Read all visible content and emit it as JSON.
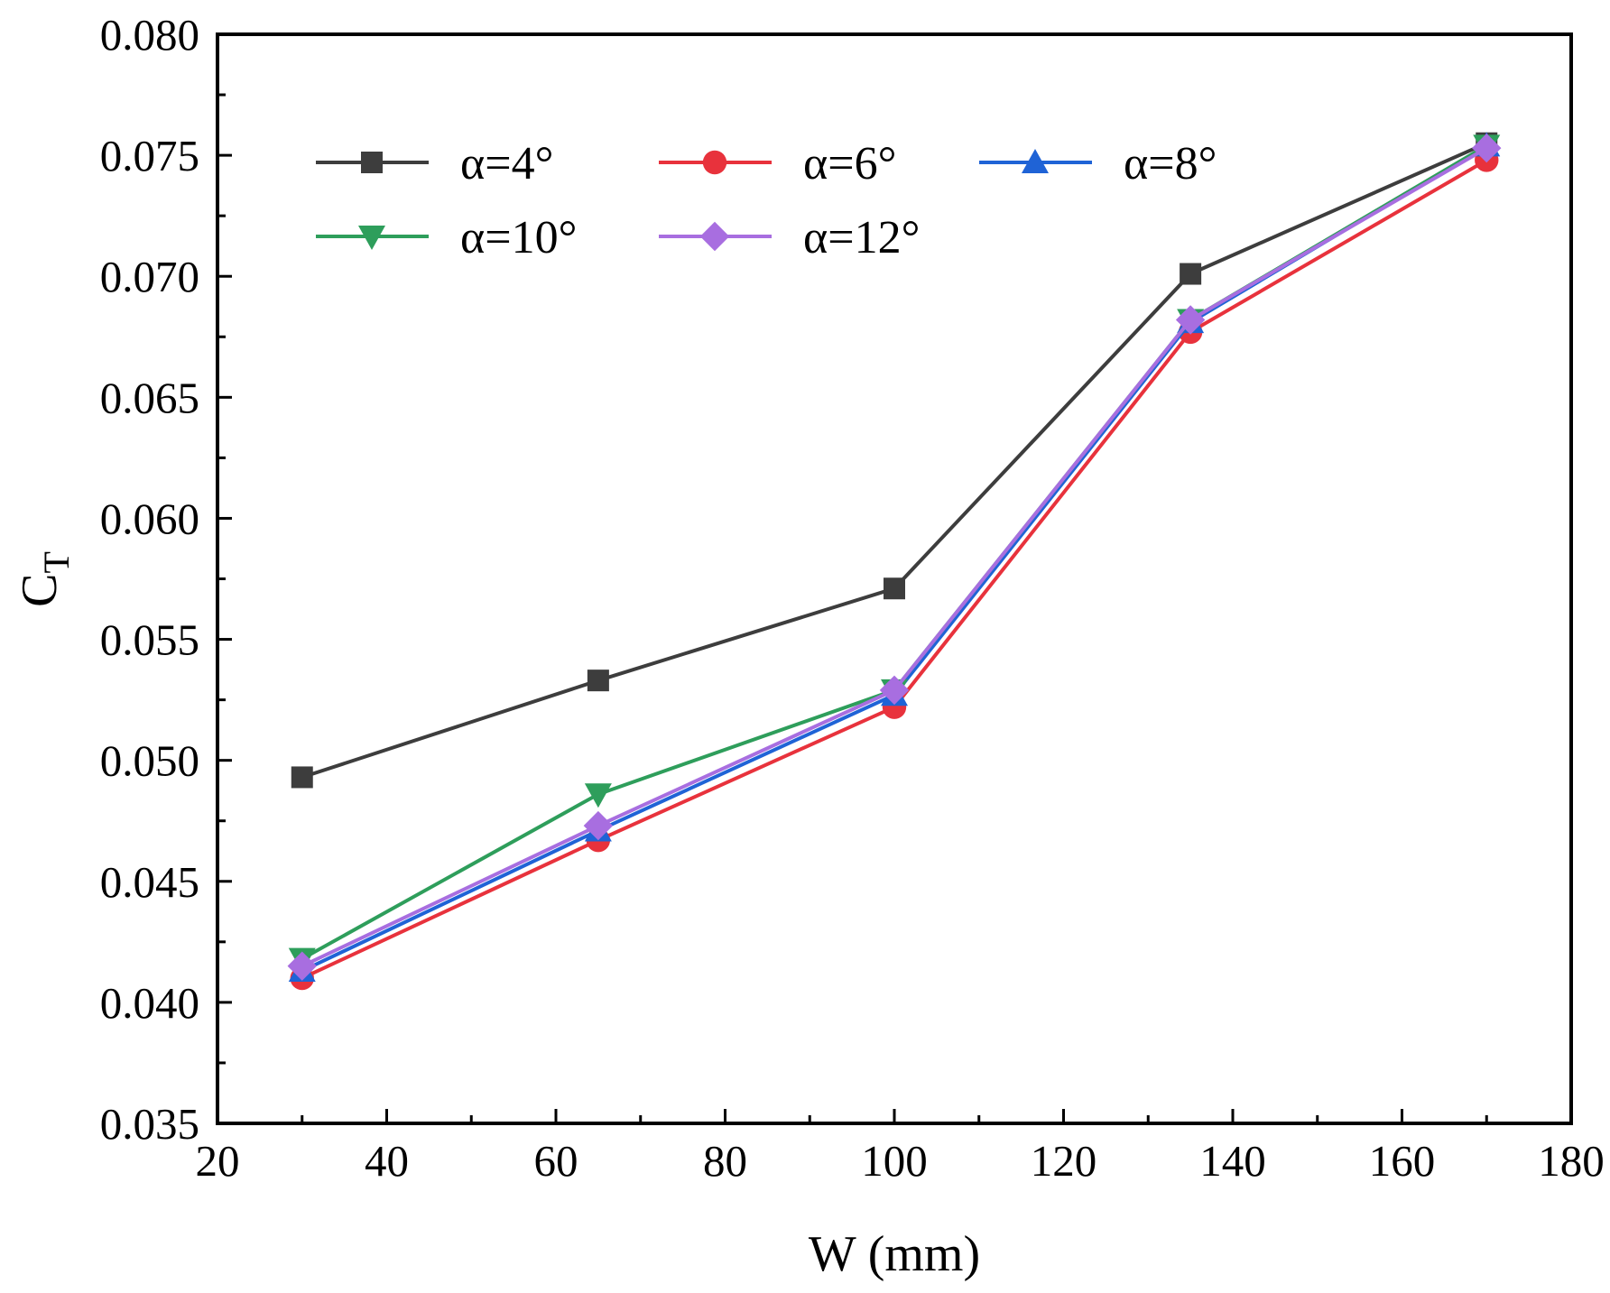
{
  "chart_data": {
    "type": "line",
    "title": "",
    "xlabel": "W (mm)",
    "ylabel_main": "C",
    "ylabel_sub": "T",
    "xlim": [
      20,
      180
    ],
    "ylim": [
      0.035,
      0.08
    ],
    "x_ticks": [
      20,
      40,
      60,
      80,
      100,
      120,
      140,
      160,
      180
    ],
    "x_tick_labels": [
      "20",
      "40",
      "60",
      "80",
      "100",
      "120",
      "140",
      "160",
      "180"
    ],
    "y_ticks": [
      0.035,
      0.04,
      0.045,
      0.05,
      0.055,
      0.06,
      0.065,
      0.07,
      0.075,
      0.08
    ],
    "y_tick_labels": [
      "0.035",
      "0.040",
      "0.045",
      "0.050",
      "0.055",
      "0.060",
      "0.065",
      "0.070",
      "0.075",
      "0.080"
    ],
    "grid": false,
    "legend_position": "top-left",
    "x": [
      30,
      65,
      100,
      135,
      170
    ],
    "series": [
      {
        "name": "α=4°",
        "color": "#3d3d3d",
        "marker": "square",
        "values": [
          0.0493,
          0.0533,
          0.0571,
          0.0701,
          0.0755
        ]
      },
      {
        "name": "α=6°",
        "color": "#e8323c",
        "marker": "circle",
        "values": [
          0.041,
          0.0467,
          0.0522,
          0.0677,
          0.0748
        ]
      },
      {
        "name": "α=8°",
        "color": "#1f63d6",
        "marker": "triangle-up",
        "values": [
          0.0413,
          0.0471,
          0.0527,
          0.0681,
          0.0754
        ]
      },
      {
        "name": "α=10°",
        "color": "#2e9e5b",
        "marker": "triangle-down",
        "values": [
          0.0418,
          0.0486,
          0.0529,
          0.0682,
          0.0754
        ]
      },
      {
        "name": "α=12°",
        "color": "#a86ee0",
        "marker": "diamond",
        "values": [
          0.0415,
          0.0473,
          0.0529,
          0.0682,
          0.0753
        ]
      }
    ]
  }
}
